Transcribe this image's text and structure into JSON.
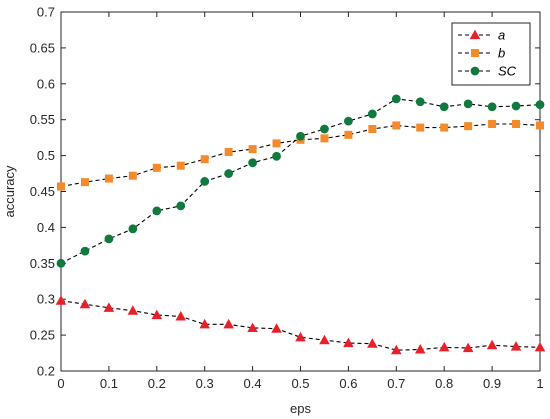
{
  "chart_data": {
    "type": "line",
    "xlabel": "eps",
    "ylabel": "accuracy",
    "xlim": [
      0,
      1
    ],
    "ylim": [
      0.2,
      0.7
    ],
    "xticks": [
      "0",
      "0.1",
      "0.2",
      "0.3",
      "0.4",
      "0.5",
      "0.6",
      "0.7",
      "0.8",
      "0.9",
      "1"
    ],
    "yticks": [
      "0.2",
      "0.25",
      "0.3",
      "0.35",
      "0.4",
      "0.45",
      "0.5",
      "0.55",
      "0.6",
      "0.65",
      "0.7"
    ],
    "grid": false,
    "legend_position": "top-right",
    "x": [
      0,
      0.05,
      0.1,
      0.15,
      0.2,
      0.25,
      0.3,
      0.35,
      0.4,
      0.45,
      0.5,
      0.55,
      0.6,
      0.65,
      0.7,
      0.75,
      0.8,
      0.85,
      0.9,
      0.95,
      1
    ],
    "series": [
      {
        "name": "a",
        "color": "#e8202a",
        "marker": "triangle",
        "line_style": "dashed",
        "values": [
          0.298,
          0.293,
          0.288,
          0.284,
          0.278,
          0.276,
          0.265,
          0.265,
          0.26,
          0.259,
          0.247,
          0.243,
          0.239,
          0.238,
          0.229,
          0.23,
          0.233,
          0.232,
          0.236,
          0.234,
          0.233
        ]
      },
      {
        "name": "b",
        "color": "#f58a2a",
        "marker": "square",
        "line_style": "dashed",
        "values": [
          0.457,
          0.463,
          0.468,
          0.472,
          0.483,
          0.486,
          0.495,
          0.505,
          0.509,
          0.517,
          0.522,
          0.524,
          0.529,
          0.537,
          0.542,
          0.539,
          0.539,
          0.541,
          0.544,
          0.544,
          0.542
        ]
      },
      {
        "name": "SC",
        "color": "#0f7a3c",
        "marker": "circle",
        "line_style": "dashed",
        "values": [
          0.35,
          0.367,
          0.384,
          0.398,
          0.423,
          0.43,
          0.464,
          0.475,
          0.49,
          0.499,
          0.527,
          0.537,
          0.548,
          0.558,
          0.579,
          0.575,
          0.568,
          0.572,
          0.568,
          0.569,
          0.571
        ]
      }
    ]
  }
}
